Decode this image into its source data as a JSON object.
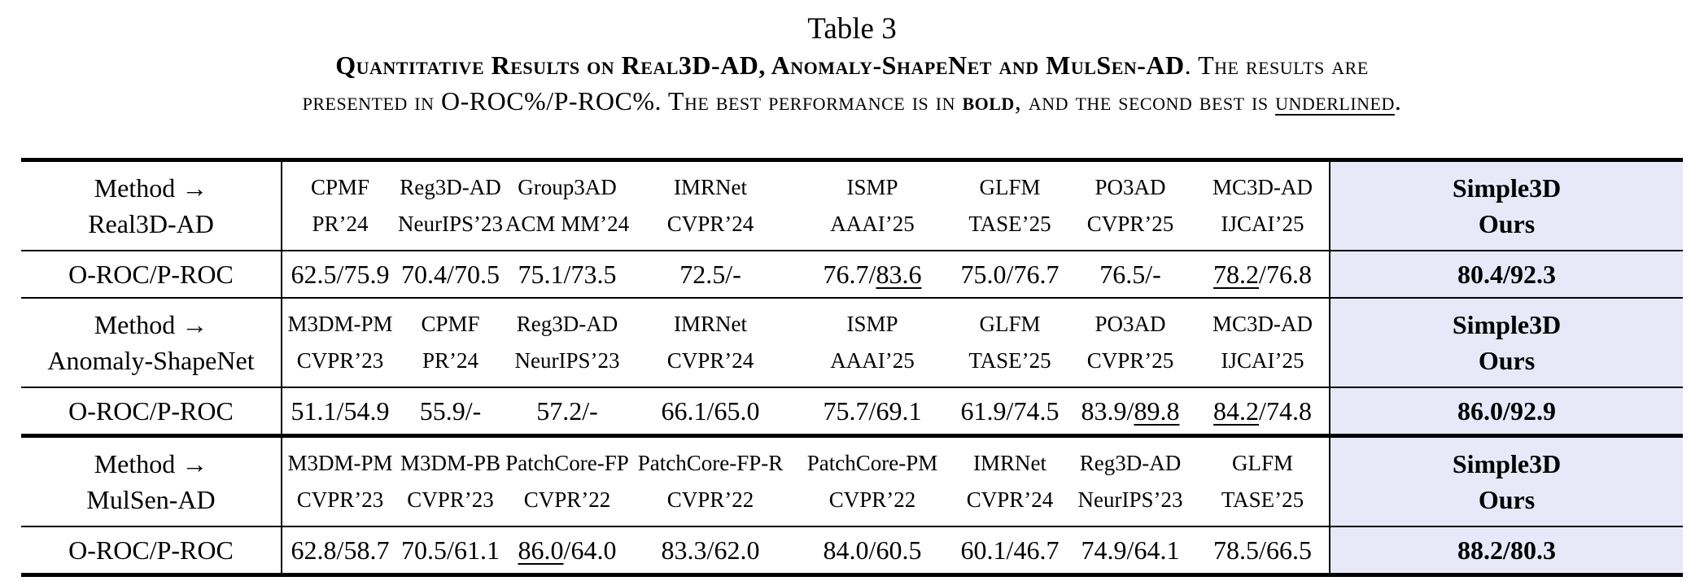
{
  "caption": {
    "label": "Table 3",
    "line1": [
      {
        "text": "Quantitative Results on Real3D-AD, Anomaly-ShapeNet and MulSen-AD",
        "style": "bold"
      },
      {
        "text": ". The results are",
        "style": "normal"
      }
    ],
    "line2": [
      {
        "text": "presented in O-ROC%/P-ROC%. The best performance is in ",
        "style": "normal"
      },
      {
        "text": "bold",
        "style": "bold"
      },
      {
        "text": ", and the second best is ",
        "style": "normal"
      },
      {
        "text": "underlined",
        "style": "underline"
      },
      {
        "text": ".",
        "style": "normal"
      }
    ]
  },
  "sections": [
    {
      "header": {
        "method_label": "Method →",
        "dataset": "Real3D-AD",
        "methods": [
          {
            "name": "CPMF",
            "venue": "PR’24"
          },
          {
            "name": "Reg3D-AD",
            "venue": "NeurIPS’23"
          },
          {
            "name": "Group3AD",
            "venue": "ACM MM’24"
          },
          {
            "name": "IMRNet",
            "venue": "CVPR’24"
          },
          {
            "name": "ISMP",
            "venue": "AAAI’25"
          },
          {
            "name": "GLFM",
            "venue": "TASE’25"
          },
          {
            "name": "PO3AD",
            "venue": "CVPR’25"
          },
          {
            "name": "MC3D-AD",
            "venue": "IJCAI’25"
          }
        ],
        "ours": {
          "name": "Simple3D",
          "label": "Ours"
        }
      },
      "row": {
        "label": "O-ROC/P-ROC",
        "values": [
          [
            {
              "t": "62.5/75.9"
            }
          ],
          [
            {
              "t": "70.4/70.5"
            }
          ],
          [
            {
              "t": "75.1/73.5"
            }
          ],
          [
            {
              "t": "72.5/-"
            }
          ],
          [
            {
              "t": "76.7/"
            },
            {
              "t": "83.6",
              "u": true
            }
          ],
          [
            {
              "t": "75.0/76.7"
            }
          ],
          [
            {
              "t": "76.5/-"
            }
          ],
          [
            {
              "t": "78.2",
              "u": true
            },
            {
              "t": "/76.8"
            }
          ]
        ],
        "ours": "80.4/92.3"
      }
    },
    {
      "header": {
        "method_label": "Method →",
        "dataset": "Anomaly-ShapeNet",
        "methods": [
          {
            "name": "M3DM-PM",
            "venue": "CVPR’23"
          },
          {
            "name": "CPMF",
            "venue": "PR’24"
          },
          {
            "name": "Reg3D-AD",
            "venue": "NeurIPS’23"
          },
          {
            "name": "IMRNet",
            "venue": "CVPR’24"
          },
          {
            "name": "ISMP",
            "venue": "AAAI’25"
          },
          {
            "name": "GLFM",
            "venue": "TASE’25"
          },
          {
            "name": "PO3AD",
            "venue": "CVPR’25"
          },
          {
            "name": "MC3D-AD",
            "venue": "IJCAI’25"
          }
        ],
        "ours": {
          "name": "Simple3D",
          "label": "Ours"
        }
      },
      "row": {
        "label": "O-ROC/P-ROC",
        "values": [
          [
            {
              "t": "51.1/54.9"
            }
          ],
          [
            {
              "t": "55.9/-"
            }
          ],
          [
            {
              "t": "57.2/-"
            }
          ],
          [
            {
              "t": "66.1/65.0"
            }
          ],
          [
            {
              "t": "75.7/69.1"
            }
          ],
          [
            {
              "t": "61.9/74.5"
            }
          ],
          [
            {
              "t": "83.9/"
            },
            {
              "t": "89.8",
              "u": true
            }
          ],
          [
            {
              "t": "84.2",
              "u": true
            },
            {
              "t": "/74.8"
            }
          ]
        ],
        "ours": "86.0/92.9"
      }
    },
    {
      "header": {
        "method_label": "Method →",
        "dataset": "MulSen-AD",
        "methods": [
          {
            "name": "M3DM-PM",
            "venue": "CVPR’23"
          },
          {
            "name": "M3DM-PB",
            "venue": "CVPR’23"
          },
          {
            "name": "PatchCore-FP",
            "venue": "CVPR’22"
          },
          {
            "name": "PatchCore-FP-R",
            "venue": "CVPR’22"
          },
          {
            "name": "PatchCore-PM",
            "venue": "CVPR’22"
          },
          {
            "name": "IMRNet",
            "venue": "CVPR’24"
          },
          {
            "name": "Reg3D-AD",
            "venue": "NeurIPS’23"
          },
          {
            "name": "GLFM",
            "venue": "TASE’25"
          }
        ],
        "ours": {
          "name": "Simple3D",
          "label": "Ours"
        }
      },
      "row": {
        "label": "O-ROC/P-ROC",
        "values": [
          [
            {
              "t": "62.8/58.7"
            }
          ],
          [
            {
              "t": "70.5/61.1"
            }
          ],
          [
            {
              "t": "86.0",
              "u": true
            },
            {
              "t": "/64.0"
            }
          ],
          [
            {
              "t": "83.3/62.0"
            }
          ],
          [
            {
              "t": "84.0/60.5"
            }
          ],
          [
            {
              "t": "60.1/46.7"
            }
          ],
          [
            {
              "t": "74.9/64.1"
            }
          ],
          [
            {
              "t": "78.5/66.5"
            }
          ]
        ],
        "ours": "88.2/80.3"
      }
    }
  ]
}
